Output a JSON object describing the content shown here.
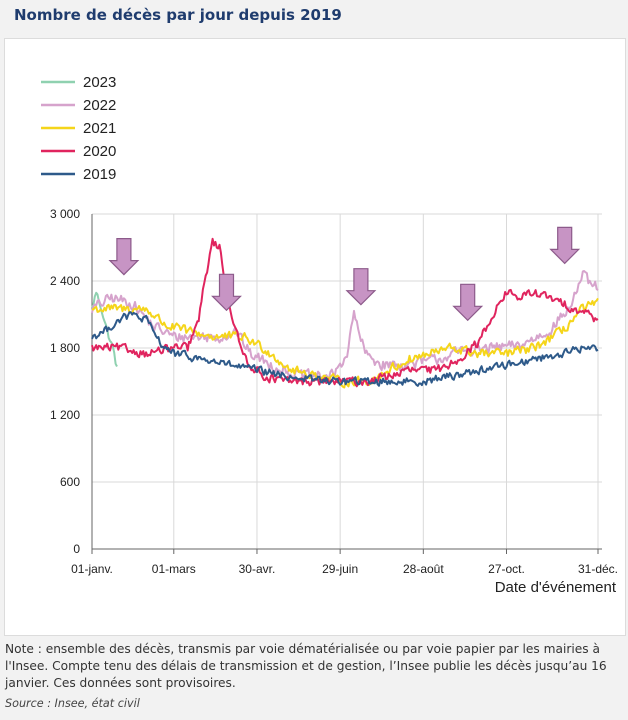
{
  "page": {
    "title": "Nombre de décès par jour depuis 2019",
    "note": "Note : ensemble des décès, transmis par voie dématérialisée ou par voie papier par les mairies à l'Insee. Compte tenu des délais de transmission et de gestion, l’Insee publie les décès jusqu’au 16 janvier. Ces données sont provisoires.",
    "source": "Source : Insee, état civil"
  },
  "chart_data": {
    "type": "line",
    "title": "Nombre de décès par jour depuis 2019",
    "xlabel": "Date d'événement",
    "ylabel": "",
    "x_unit": "day_of_year",
    "xlim": [
      1,
      366
    ],
    "ylim": [
      0,
      3000
    ],
    "yticks": [
      0,
      600,
      1200,
      1800,
      2400,
      3000
    ],
    "ytick_labels": [
      "0",
      "600",
      "1 200",
      "1 800",
      "2 400",
      "3 000"
    ],
    "xticks": [
      1,
      60,
      120,
      180,
      240,
      300,
      366
    ],
    "xtick_labels": [
      "01-janv.",
      "01-mars",
      "30-avr.",
      "29-juin",
      "28-août",
      "27-oct.",
      "31-déc."
    ],
    "grid": true,
    "legend_position": "top-left",
    "series": [
      {
        "name": "2023",
        "color": "#8fd1b0",
        "noise": 50,
        "keypoints": [
          [
            1,
            2150
          ],
          [
            4,
            2300
          ],
          [
            8,
            2150
          ],
          [
            12,
            1950
          ],
          [
            16,
            1800
          ],
          [
            19,
            1620
          ]
        ]
      },
      {
        "name": "2022",
        "color": "#d6a3cc",
        "noise": 70,
        "keypoints": [
          [
            1,
            2150
          ],
          [
            15,
            2250
          ],
          [
            30,
            2200
          ],
          [
            45,
            2000
          ],
          [
            60,
            1900
          ],
          [
            80,
            1900
          ],
          [
            95,
            1900
          ],
          [
            105,
            1950
          ],
          [
            115,
            1750
          ],
          [
            130,
            1650
          ],
          [
            150,
            1550
          ],
          [
            175,
            1550
          ],
          [
            185,
            1750
          ],
          [
            190,
            2100
          ],
          [
            198,
            1750
          ],
          [
            210,
            1650
          ],
          [
            230,
            1650
          ],
          [
            250,
            1700
          ],
          [
            270,
            1780
          ],
          [
            290,
            1800
          ],
          [
            310,
            1820
          ],
          [
            330,
            1950
          ],
          [
            345,
            2150
          ],
          [
            355,
            2450
          ],
          [
            362,
            2350
          ],
          [
            366,
            2350
          ]
        ]
      },
      {
        "name": "2021",
        "color": "#f5d51a",
        "noise": 60,
        "keypoints": [
          [
            1,
            2150
          ],
          [
            20,
            2150
          ],
          [
            40,
            2150
          ],
          [
            55,
            2000
          ],
          [
            70,
            1950
          ],
          [
            90,
            1900
          ],
          [
            110,
            1900
          ],
          [
            125,
            1800
          ],
          [
            145,
            1600
          ],
          [
            165,
            1550
          ],
          [
            180,
            1500
          ],
          [
            200,
            1500
          ],
          [
            215,
            1600
          ],
          [
            230,
            1700
          ],
          [
            245,
            1750
          ],
          [
            260,
            1800
          ],
          [
            280,
            1750
          ],
          [
            300,
            1750
          ],
          [
            320,
            1800
          ],
          [
            340,
            1950
          ],
          [
            355,
            2150
          ],
          [
            366,
            2200
          ]
        ]
      },
      {
        "name": "2020",
        "color": "#e0245e",
        "noise": 55,
        "keypoints": [
          [
            1,
            1800
          ],
          [
            20,
            1800
          ],
          [
            40,
            1750
          ],
          [
            60,
            1800
          ],
          [
            70,
            1800
          ],
          [
            78,
            2050
          ],
          [
            83,
            2450
          ],
          [
            88,
            2750
          ],
          [
            93,
            2700
          ],
          [
            100,
            2200
          ],
          [
            108,
            1800
          ],
          [
            115,
            1650
          ],
          [
            125,
            1550
          ],
          [
            140,
            1500
          ],
          [
            160,
            1500
          ],
          [
            180,
            1500
          ],
          [
            200,
            1500
          ],
          [
            215,
            1550
          ],
          [
            230,
            1600
          ],
          [
            250,
            1600
          ],
          [
            265,
            1700
          ],
          [
            280,
            1850
          ],
          [
            290,
            2100
          ],
          [
            300,
            2300
          ],
          [
            310,
            2250
          ],
          [
            320,
            2300
          ],
          [
            330,
            2250
          ],
          [
            340,
            2200
          ],
          [
            350,
            2150
          ],
          [
            360,
            2100
          ],
          [
            366,
            2050
          ]
        ]
      },
      {
        "name": "2019",
        "color": "#2e5a8a",
        "noise": 50,
        "keypoints": [
          [
            1,
            1900
          ],
          [
            10,
            1950
          ],
          [
            20,
            2050
          ],
          [
            30,
            2100
          ],
          [
            40,
            2050
          ],
          [
            50,
            1850
          ],
          [
            60,
            1750
          ],
          [
            80,
            1700
          ],
          [
            100,
            1650
          ],
          [
            120,
            1600
          ],
          [
            140,
            1550
          ],
          [
            160,
            1520
          ],
          [
            180,
            1500
          ],
          [
            200,
            1500
          ],
          [
            220,
            1500
          ],
          [
            240,
            1500
          ],
          [
            260,
            1550
          ],
          [
            280,
            1600
          ],
          [
            300,
            1650
          ],
          [
            320,
            1700
          ],
          [
            340,
            1750
          ],
          [
            355,
            1800
          ],
          [
            366,
            1800
          ]
        ]
      }
    ],
    "annotations": [
      {
        "type": "arrow",
        "color": "#c794c4",
        "x": 24,
        "y": 2780
      },
      {
        "type": "arrow",
        "color": "#c794c4",
        "x": 98,
        "y": 2460
      },
      {
        "type": "arrow",
        "color": "#c794c4",
        "x": 195,
        "y": 2510
      },
      {
        "type": "arrow",
        "color": "#c794c4",
        "x": 272,
        "y": 2370
      },
      {
        "type": "arrow",
        "color": "#c794c4",
        "x": 342,
        "y": 2880
      }
    ]
  }
}
